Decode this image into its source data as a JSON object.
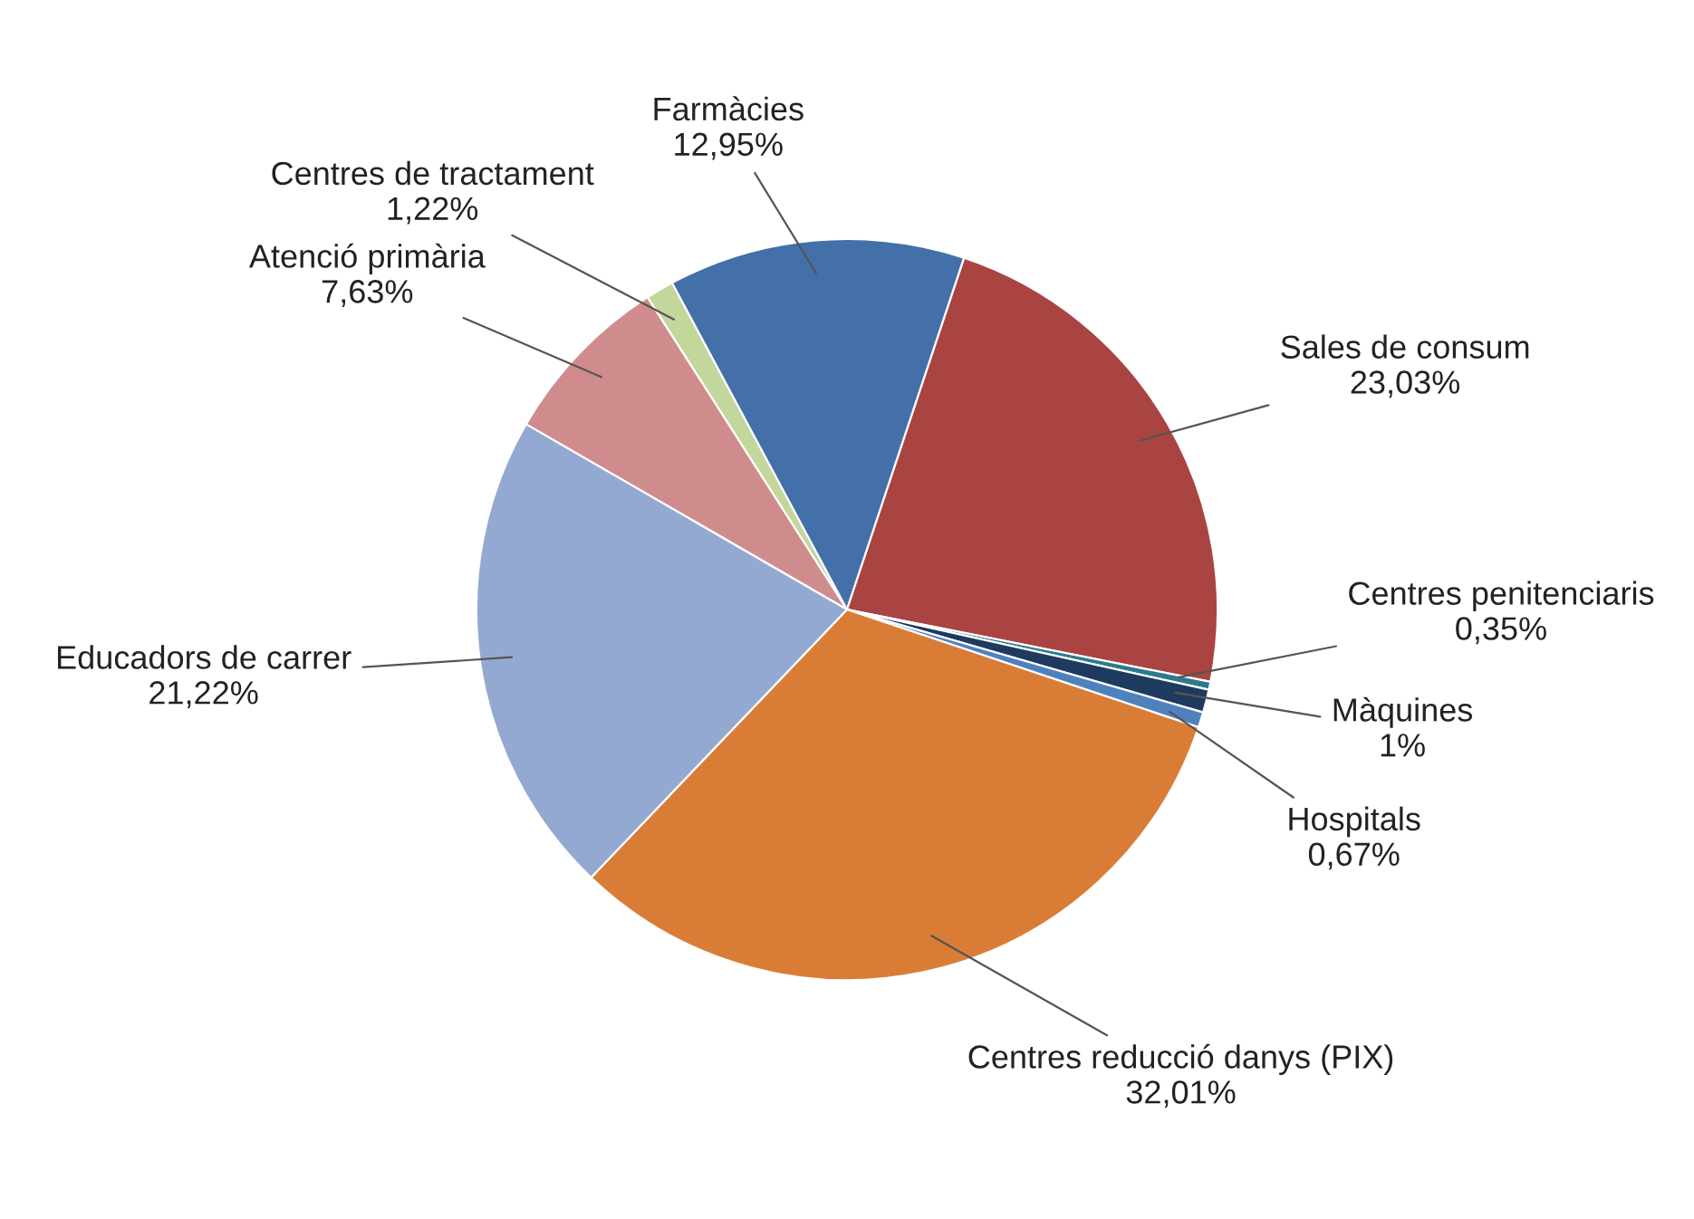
{
  "chart_data": {
    "type": "pie",
    "categories": [
      "Atenció primària",
      "Centres de tractament",
      "Farmàcies",
      "Sales de consum",
      "Centres penitenciaris",
      "Màquines",
      "Hospitals",
      "Centres reducció danys (PIX)",
      "Educadors de carrer"
    ],
    "values": [
      7.63,
      1.22,
      12.95,
      23.03,
      0.35,
      1,
      0.67,
      32.01,
      21.22
    ],
    "value_labels": [
      "7,63%",
      "1,22%",
      "12,95%",
      "23,03%",
      "0,35%",
      "1%",
      "0,67%",
      "32,01%",
      "21,22%"
    ],
    "colors": [
      "#d08c8c",
      "#c3d69b",
      "#4370a8",
      "#a94442",
      "#2c7a8c",
      "#1f3a5f",
      "#4f81bd",
      "#d97d36",
      "#93a9d1"
    ],
    "legend": false
  }
}
